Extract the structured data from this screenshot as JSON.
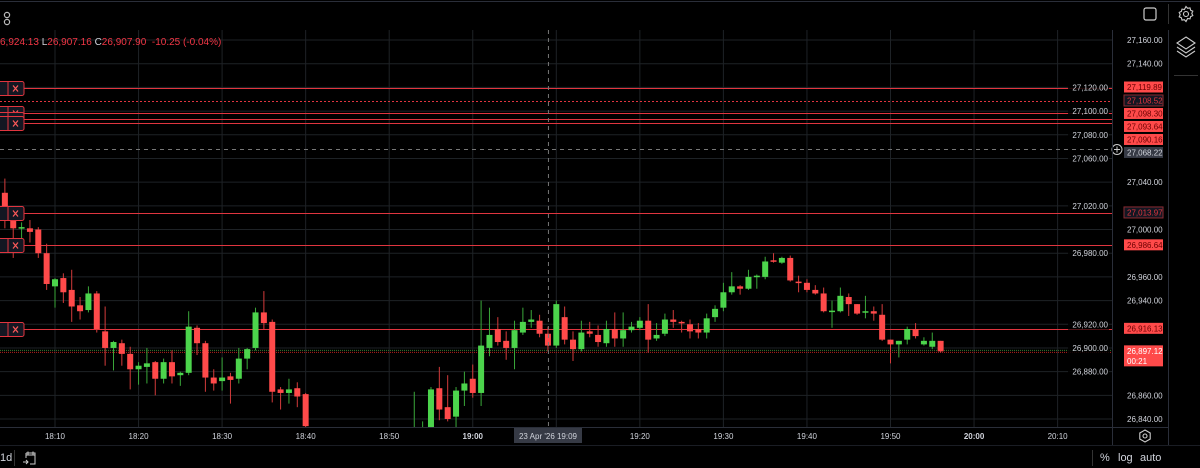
{
  "legend": {
    "high_partial": "6,924.13",
    "low_key": "L",
    "low": "26,907.16",
    "close_key": "C",
    "close": "26,907.90",
    "change": "-10.25 (-0.04%)"
  },
  "toolbar": {
    "interval_partial": "1d",
    "percent_label": "%",
    "log_label": "log",
    "auto_label": "auto",
    "icons": [
      "indicators-icon",
      "fullscreen-icon",
      "settings-icon",
      "layers-icon",
      "goto-date-icon",
      "axis-settings-icon"
    ]
  },
  "crosshair": {
    "time_label": "23 Apr '26  19:09",
    "price_label": "27,068.22",
    "time": "19:09",
    "price": 27068.22
  },
  "current_price": {
    "price": 26897.12,
    "label": "26,897.12",
    "countdown": "00:21"
  },
  "colors": {
    "up": "#4cd44c",
    "down": "#ff4a4a",
    "alert_line": "#e0353f",
    "background": "#000000",
    "grid": "#1e2226"
  },
  "alert_lines": [
    {
      "price": 27119.89,
      "label": "27,119.89",
      "style": "solid",
      "label_style": "filled"
    },
    {
      "price": 27108.52,
      "label": "27,108.52",
      "style": "dotted",
      "label_style": "dark"
    },
    {
      "price": 27098.3,
      "label": "27,098.30",
      "style": "solid",
      "label_style": "filled"
    },
    {
      "price": 27093.64,
      "label": "27,093.64",
      "style": "solid",
      "label_style": "filled"
    },
    {
      "price": 27090.16,
      "label": "27,090.16",
      "style": "solid",
      "label_style": "filled"
    },
    {
      "price": 27013.97,
      "label": "27,013.97",
      "style": "solid",
      "label_style": "dark"
    },
    {
      "price": 26986.64,
      "label": "26,986.64",
      "style": "solid",
      "label_style": "filled"
    },
    {
      "price": 26916.13,
      "label": "26,916.13",
      "style": "solid",
      "label_style": "filled"
    }
  ],
  "chart_data": {
    "type": "candlestick",
    "interval": "1 minute",
    "date": "23 Apr '26",
    "ylim": [
      26832,
      27168
    ],
    "xlim": [
      "18:04",
      "20:20"
    ],
    "grid": true,
    "y_ticks": [
      27160,
      27140,
      27120,
      27100,
      27080,
      27060,
      27040,
      27020,
      27000,
      26980,
      26960,
      26940,
      26920,
      26900,
      26880,
      26860,
      26840
    ],
    "y_tick_labels": [
      "27,160.00",
      "27,140.00",
      "27,120.00",
      "27,100.00",
      "27,080.00",
      "27,060.00",
      "27,040.00",
      "27,020.00",
      "27,000.00",
      "26,980.00",
      "26,960.00",
      "26,940.00",
      "26,920.00",
      "26,900.00",
      "26,880.00",
      "26,860.00",
      "26,840.00"
    ],
    "x_ticks": [
      "18:10",
      "18:20",
      "18:30",
      "18:40",
      "18:50",
      "19:00",
      "19:10",
      "19:20",
      "19:30",
      "19:40",
      "19:50",
      "20:00",
      "20:10"
    ],
    "x_tick_labels": [
      "18:10",
      "18:20",
      "18:30",
      "18:40",
      "18:50",
      "19:00",
      "",
      "19:20",
      "19:30",
      "19:40",
      "19:50",
      "20:00",
      "20:10"
    ],
    "candles": [
      {
        "t": "18:04",
        "o": 27031,
        "h": 27043,
        "l": 27001,
        "c": 27019
      },
      {
        "t": "18:05",
        "o": 27008,
        "h": 27010,
        "l": 26976,
        "c": 27001
      },
      {
        "t": "18:06",
        "o": 27001,
        "h": 27006,
        "l": 26991,
        "c": 27002
      },
      {
        "t": "18:07",
        "o": 27001,
        "h": 27008,
        "l": 26989,
        "c": 26998
      },
      {
        "t": "18:08",
        "o": 27000,
        "h": 27002,
        "l": 26976,
        "c": 26980
      },
      {
        "t": "18:09",
        "o": 26980,
        "h": 26988,
        "l": 26949,
        "c": 26954
      },
      {
        "t": "18:10",
        "o": 26952,
        "h": 26959,
        "l": 26934,
        "c": 26958
      },
      {
        "t": "18:11",
        "o": 26959,
        "h": 26963,
        "l": 26938,
        "c": 26947
      },
      {
        "t": "18:12",
        "o": 26949,
        "h": 26966,
        "l": 26922,
        "c": 26935
      },
      {
        "t": "18:13",
        "o": 26936,
        "h": 26943,
        "l": 26924,
        "c": 26931
      },
      {
        "t": "18:14",
        "o": 26932,
        "h": 26952,
        "l": 26930,
        "c": 26946
      },
      {
        "t": "18:15",
        "o": 26946,
        "h": 26948,
        "l": 26913,
        "c": 26916
      },
      {
        "t": "18:16",
        "o": 26914,
        "h": 26935,
        "l": 26885,
        "c": 26900
      },
      {
        "t": "18:17",
        "o": 26900,
        "h": 26906,
        "l": 26881,
        "c": 26905
      },
      {
        "t": "18:18",
        "o": 26904,
        "h": 26907,
        "l": 26885,
        "c": 26895
      },
      {
        "t": "18:19",
        "o": 26895,
        "h": 26901,
        "l": 26865,
        "c": 26882
      },
      {
        "t": "18:20",
        "o": 26882,
        "h": 26888,
        "l": 26869,
        "c": 26885
      },
      {
        "t": "18:21",
        "o": 26884,
        "h": 26900,
        "l": 26870,
        "c": 26887
      },
      {
        "t": "18:22",
        "o": 26888,
        "h": 26889,
        "l": 26860,
        "c": 26874
      },
      {
        "t": "18:23",
        "o": 26874,
        "h": 26891,
        "l": 26870,
        "c": 26888
      },
      {
        "t": "18:24",
        "o": 26888,
        "h": 26898,
        "l": 26870,
        "c": 26876
      },
      {
        "t": "18:25",
        "o": 26877,
        "h": 26880,
        "l": 26868,
        "c": 26879
      },
      {
        "t": "18:26",
        "o": 26879,
        "h": 26931,
        "l": 26877,
        "c": 26918
      },
      {
        "t": "18:27",
        "o": 26917,
        "h": 26919,
        "l": 26894,
        "c": 26904
      },
      {
        "t": "18:28",
        "o": 26904,
        "h": 26906,
        "l": 26863,
        "c": 26875
      },
      {
        "t": "18:29",
        "o": 26875,
        "h": 26882,
        "l": 26864,
        "c": 26870
      },
      {
        "t": "18:30",
        "o": 26872,
        "h": 26892,
        "l": 26864,
        "c": 26875
      },
      {
        "t": "18:31",
        "o": 26876,
        "h": 26879,
        "l": 26853,
        "c": 26873
      },
      {
        "t": "18:32",
        "o": 26874,
        "h": 26900,
        "l": 26870,
        "c": 26891
      },
      {
        "t": "18:33",
        "o": 26891,
        "h": 26900,
        "l": 26882,
        "c": 26899
      },
      {
        "t": "18:34",
        "o": 26900,
        "h": 26934,
        "l": 26898,
        "c": 26930
      },
      {
        "t": "18:35",
        "o": 26930,
        "h": 26948,
        "l": 26916,
        "c": 26921
      },
      {
        "t": "18:36",
        "o": 26922,
        "h": 26924,
        "l": 26854,
        "c": 26863
      },
      {
        "t": "18:37",
        "o": 26865,
        "h": 26867,
        "l": 26848,
        "c": 26862
      },
      {
        "t": "18:38",
        "o": 26862,
        "h": 26874,
        "l": 26853,
        "c": 26865
      },
      {
        "t": "18:39",
        "o": 26866,
        "h": 26871,
        "l": 26850,
        "c": 26859
      },
      {
        "t": "18:40",
        "o": 26861,
        "h": 26862,
        "l": 26832,
        "c": 26834
      },
      {
        "t": "18:53",
        "o": 26820,
        "h": 26863,
        "l": 26810,
        "c": 26830
      },
      {
        "t": "18:54",
        "o": 26815,
        "h": 26838,
        "l": 26810,
        "c": 26825
      },
      {
        "t": "18:55",
        "o": 26830,
        "h": 26867,
        "l": 26828,
        "c": 26865
      },
      {
        "t": "18:56",
        "o": 26866,
        "h": 26884,
        "l": 26839,
        "c": 26848
      },
      {
        "t": "18:57",
        "o": 26850,
        "h": 26877,
        "l": 26838,
        "c": 26840
      },
      {
        "t": "18:58",
        "o": 26842,
        "h": 26867,
        "l": 26830,
        "c": 26864
      },
      {
        "t": "18:59",
        "o": 26864,
        "h": 26880,
        "l": 26851,
        "c": 26870
      },
      {
        "t": "19:00",
        "o": 26874,
        "h": 26886,
        "l": 26858,
        "c": 26862
      },
      {
        "t": "19:01",
        "o": 26862,
        "h": 26940,
        "l": 26851,
        "c": 26902
      },
      {
        "t": "19:02",
        "o": 26900,
        "h": 26934,
        "l": 26893,
        "c": 26911
      },
      {
        "t": "19:03",
        "o": 26916,
        "h": 26926,
        "l": 26902,
        "c": 26905
      },
      {
        "t": "19:04",
        "o": 26906,
        "h": 26914,
        "l": 26890,
        "c": 26900
      },
      {
        "t": "19:05",
        "o": 26900,
        "h": 26923,
        "l": 26882,
        "c": 26915
      },
      {
        "t": "19:06",
        "o": 26913,
        "h": 26934,
        "l": 26911,
        "c": 26922
      },
      {
        "t": "19:07",
        "o": 26922,
        "h": 26932,
        "l": 26917,
        "c": 26924
      },
      {
        "t": "19:08",
        "o": 26923,
        "h": 26928,
        "l": 26909,
        "c": 26912
      },
      {
        "t": "19:09",
        "o": 26912,
        "h": 26918,
        "l": 26897,
        "c": 26902
      },
      {
        "t": "19:10",
        "o": 26902,
        "h": 26940,
        "l": 26900,
        "c": 26937
      },
      {
        "t": "19:11",
        "o": 26926,
        "h": 26935,
        "l": 26903,
        "c": 26907
      },
      {
        "t": "19:12",
        "o": 26907,
        "h": 26914,
        "l": 26889,
        "c": 26899
      },
      {
        "t": "19:13",
        "o": 26899,
        "h": 26923,
        "l": 26897,
        "c": 26913
      },
      {
        "t": "19:14",
        "o": 26914,
        "h": 26922,
        "l": 26909,
        "c": 26912
      },
      {
        "t": "19:15",
        "o": 26911,
        "h": 26919,
        "l": 26901,
        "c": 26905
      },
      {
        "t": "19:16",
        "o": 26904,
        "h": 26923,
        "l": 26901,
        "c": 26916
      },
      {
        "t": "19:17",
        "o": 26916,
        "h": 26930,
        "l": 26901,
        "c": 26908
      },
      {
        "t": "19:18",
        "o": 26908,
        "h": 26930,
        "l": 26901,
        "c": 26915
      },
      {
        "t": "19:19",
        "o": 26915,
        "h": 26922,
        "l": 26913,
        "c": 26918
      },
      {
        "t": "19:20",
        "o": 26917,
        "h": 26926,
        "l": 26915,
        "c": 26923
      },
      {
        "t": "19:21",
        "o": 26923,
        "h": 26937,
        "l": 26896,
        "c": 26907
      },
      {
        "t": "19:22",
        "o": 26908,
        "h": 26921,
        "l": 26906,
        "c": 26911
      },
      {
        "t": "19:23",
        "o": 26912,
        "h": 26929,
        "l": 26910,
        "c": 26924
      },
      {
        "t": "19:24",
        "o": 26924,
        "h": 26932,
        "l": 26917,
        "c": 26922
      },
      {
        "t": "19:25",
        "o": 26922,
        "h": 26923,
        "l": 26913,
        "c": 26921
      },
      {
        "t": "19:26",
        "o": 26920,
        "h": 26924,
        "l": 26908,
        "c": 26914
      },
      {
        "t": "19:27",
        "o": 26916,
        "h": 26921,
        "l": 26908,
        "c": 26913
      },
      {
        "t": "19:28",
        "o": 26913,
        "h": 26929,
        "l": 26908,
        "c": 26925
      },
      {
        "t": "19:29",
        "o": 26926,
        "h": 26936,
        "l": 26922,
        "c": 26933
      },
      {
        "t": "19:30",
        "o": 26934,
        "h": 26955,
        "l": 26931,
        "c": 26947
      },
      {
        "t": "19:31",
        "o": 26947,
        "h": 26964,
        "l": 26945,
        "c": 26952
      },
      {
        "t": "19:32",
        "o": 26952,
        "h": 26953,
        "l": 26945,
        "c": 26950
      },
      {
        "t": "19:33",
        "o": 26950,
        "h": 26966,
        "l": 26949,
        "c": 26960
      },
      {
        "t": "19:34",
        "o": 26960,
        "h": 26962,
        "l": 26950,
        "c": 26961
      },
      {
        "t": "19:35",
        "o": 26960,
        "h": 26977,
        "l": 26958,
        "c": 26973
      },
      {
        "t": "19:36",
        "o": 26974,
        "h": 26980,
        "l": 26972,
        "c": 26973
      },
      {
        "t": "19:37",
        "o": 26972,
        "h": 26977,
        "l": 26971,
        "c": 26976
      },
      {
        "t": "19:38",
        "o": 26976,
        "h": 26978,
        "l": 26956,
        "c": 26957
      },
      {
        "t": "19:39",
        "o": 26956,
        "h": 26961,
        "l": 26947,
        "c": 26955
      },
      {
        "t": "19:40",
        "o": 26955,
        "h": 26958,
        "l": 26947,
        "c": 26949
      },
      {
        "t": "19:41",
        "o": 26949,
        "h": 26953,
        "l": 26945,
        "c": 26946
      },
      {
        "t": "19:42",
        "o": 26946,
        "h": 26951,
        "l": 26930,
        "c": 26931
      },
      {
        "t": "19:43",
        "o": 26931,
        "h": 26940,
        "l": 26917,
        "c": 26931.5
      },
      {
        "t": "19:44",
        "o": 26931,
        "h": 26951,
        "l": 26930,
        "c": 26944
      },
      {
        "t": "19:45",
        "o": 26943,
        "h": 26946,
        "l": 26927,
        "c": 26937
      },
      {
        "t": "19:46",
        "o": 26937,
        "h": 26937,
        "l": 26928,
        "c": 26929
      },
      {
        "t": "19:47",
        "o": 26930,
        "h": 26944,
        "l": 26925,
        "c": 26931
      },
      {
        "t": "19:48",
        "o": 26931,
        "h": 26935,
        "l": 26923,
        "c": 26929
      },
      {
        "t": "19:49",
        "o": 26928,
        "h": 26937,
        "l": 26906,
        "c": 26907
      },
      {
        "t": "19:50",
        "o": 26907,
        "h": 26907,
        "l": 26887,
        "c": 26903
      },
      {
        "t": "19:51",
        "o": 26903,
        "h": 26906,
        "l": 26892,
        "c": 26906
      },
      {
        "t": "19:52",
        "o": 26907,
        "h": 26918,
        "l": 26903,
        "c": 26916
      },
      {
        "t": "19:53",
        "o": 26916,
        "h": 26921,
        "l": 26908,
        "c": 26910
      },
      {
        "t": "19:54",
        "o": 26903,
        "h": 26909,
        "l": 26902,
        "c": 26906
      },
      {
        "t": "19:55",
        "o": 26901,
        "h": 26913,
        "l": 26899,
        "c": 26906
      },
      {
        "t": "19:56",
        "o": 26906,
        "h": 26906,
        "l": 26896,
        "c": 26897.12
      }
    ]
  }
}
